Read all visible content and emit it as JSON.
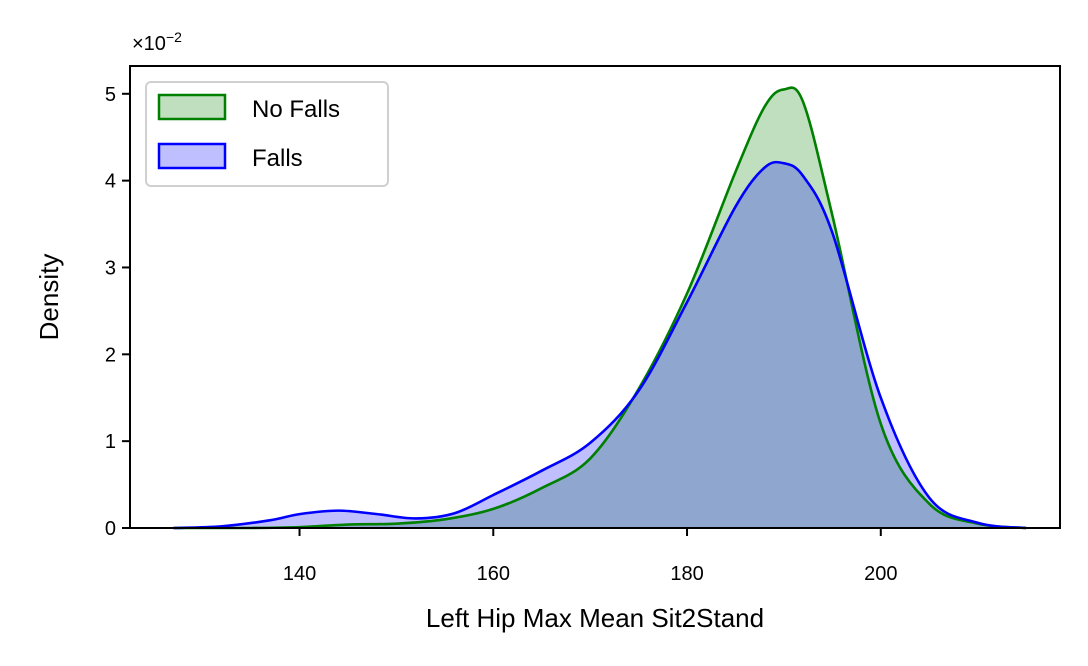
{
  "chart_data": {
    "type": "area",
    "xlabel": "Left Hip Max Mean Sit2Stand",
    "ylabel": "Density",
    "y_scale_label": "×10",
    "y_scale_exponent": "−2",
    "x_ticks": [
      "140",
      "160",
      "180",
      "200"
    ],
    "y_ticks": [
      "0",
      "1",
      "2",
      "3",
      "4",
      "5"
    ],
    "xlim": [
      122.5,
      218.5
    ],
    "ylim": [
      0,
      5.32
    ],
    "legend_position": "upper-left",
    "grid": false,
    "series": [
      {
        "name": "No Falls",
        "line_color": "#008000",
        "fill_color": "#008000",
        "x": [
          127,
          135,
          140,
          145,
          150,
          155,
          160,
          165,
          170,
          175,
          180,
          185,
          188,
          190,
          192,
          195,
          200,
          205,
          210,
          215
        ],
        "y": [
          0.0,
          0.0,
          0.01,
          0.04,
          0.05,
          0.1,
          0.22,
          0.46,
          0.8,
          1.6,
          2.7,
          4.1,
          4.85,
          5.05,
          4.9,
          3.6,
          1.2,
          0.28,
          0.05,
          0.0
        ]
      },
      {
        "name": "Falls",
        "line_color": "#0000ff",
        "fill_color": "#0000ff",
        "x": [
          127,
          132,
          137,
          140,
          144,
          148,
          152,
          156,
          160,
          165,
          170,
          175,
          180,
          185,
          188,
          190,
          192,
          195,
          200,
          205,
          210,
          215
        ],
        "y": [
          0.0,
          0.02,
          0.09,
          0.16,
          0.2,
          0.16,
          0.11,
          0.17,
          0.38,
          0.66,
          0.98,
          1.58,
          2.6,
          3.7,
          4.15,
          4.2,
          4.05,
          3.4,
          1.5,
          0.35,
          0.06,
          0.0
        ]
      }
    ]
  }
}
